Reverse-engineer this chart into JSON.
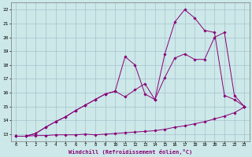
{
  "xlabel": "Windchill (Refroidissement éolien,°C)",
  "xlim": [
    -0.5,
    23.5
  ],
  "ylim": [
    12.5,
    22.5
  ],
  "xticks": [
    0,
    1,
    2,
    3,
    4,
    5,
    6,
    7,
    8,
    9,
    10,
    11,
    12,
    13,
    14,
    15,
    16,
    17,
    18,
    19,
    20,
    21,
    22,
    23
  ],
  "yticks": [
    13,
    14,
    15,
    16,
    17,
    18,
    19,
    20,
    21,
    22
  ],
  "bg_color": "#cce8e8",
  "grid_color": "#a0b8c8",
  "line_color": "#880077",
  "line1_x": [
    0,
    1,
    2,
    3,
    4,
    5,
    6,
    7,
    8,
    9,
    10,
    11,
    12,
    13,
    14,
    15,
    16,
    17,
    18,
    19,
    20,
    21,
    22,
    23
  ],
  "line1_y": [
    12.85,
    12.85,
    12.9,
    12.9,
    12.95,
    12.95,
    12.95,
    13.0,
    12.95,
    13.0,
    13.05,
    13.1,
    13.15,
    13.2,
    13.25,
    13.35,
    13.5,
    13.6,
    13.75,
    13.9,
    14.1,
    14.3,
    14.55,
    14.95
  ],
  "line2_x": [
    0,
    1,
    2,
    3,
    4,
    5,
    6,
    7,
    8,
    9,
    10,
    11,
    12,
    13,
    14,
    15,
    16,
    17,
    18,
    19,
    20,
    21,
    22,
    23
  ],
  "line2_y": [
    12.85,
    12.85,
    13.05,
    13.5,
    13.9,
    14.25,
    14.7,
    15.1,
    15.5,
    15.9,
    16.1,
    15.7,
    16.2,
    16.65,
    15.5,
    17.1,
    18.5,
    18.8,
    18.4,
    18.4,
    20.0,
    20.35,
    15.8,
    15.0
  ],
  "line3_x": [
    0,
    1,
    2,
    3,
    4,
    5,
    6,
    7,
    8,
    9,
    10,
    11,
    12,
    13,
    14,
    15,
    16,
    17,
    18,
    19,
    20,
    21,
    22,
    23
  ],
  "line3_y": [
    12.85,
    12.85,
    13.05,
    13.5,
    13.9,
    14.25,
    14.7,
    15.1,
    15.5,
    15.9,
    16.1,
    18.6,
    18.0,
    15.9,
    15.5,
    18.8,
    21.1,
    22.0,
    21.4,
    20.5,
    20.35,
    15.8,
    15.5,
    15.0
  ]
}
